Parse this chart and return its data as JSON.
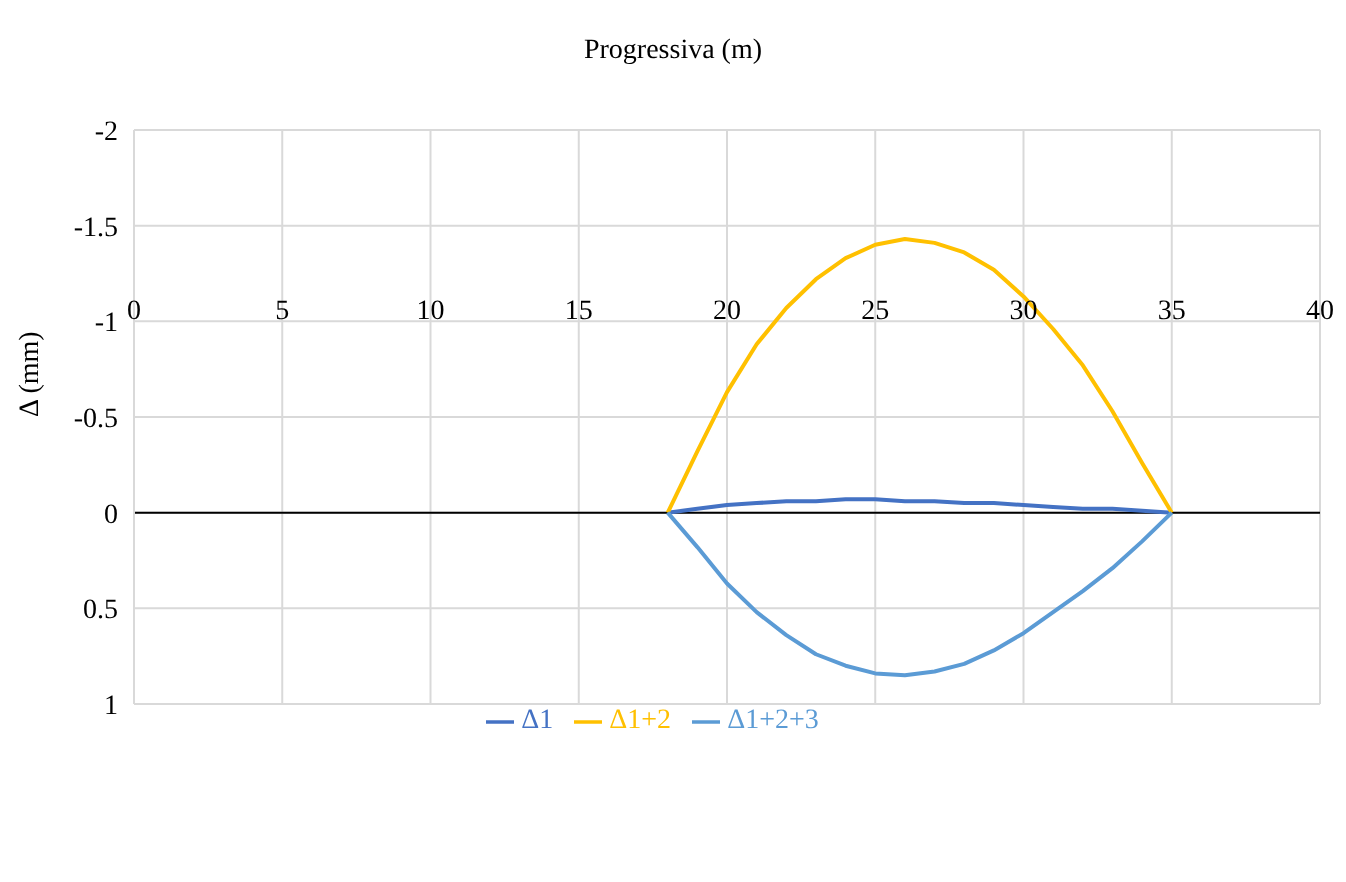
{
  "chart_data": {
    "type": "line",
    "xlabel": "Progressiva (m)",
    "ylabel": "Δ (mm)",
    "x": [
      18,
      19,
      20,
      21,
      22,
      23,
      24,
      25,
      26,
      27,
      28,
      29,
      30,
      31,
      32,
      33,
      34,
      35
    ],
    "series": [
      {
        "name": "Δ1",
        "color": "#4472c4",
        "values": [
          0,
          -0.02,
          -0.04,
          -0.05,
          -0.06,
          -0.06,
          -0.07,
          -0.07,
          -0.06,
          -0.06,
          -0.05,
          -0.05,
          -0.04,
          -0.03,
          -0.02,
          -0.02,
          -0.01,
          0
        ]
      },
      {
        "name": "Δ1+2",
        "color": "#ffc000",
        "values": [
          0,
          -0.32,
          -0.63,
          -0.88,
          -1.07,
          -1.22,
          -1.33,
          -1.4,
          -1.43,
          -1.41,
          -1.36,
          -1.27,
          -1.13,
          -0.96,
          -0.77,
          -0.53,
          -0.26,
          0
        ]
      },
      {
        "name": "Δ1+2+3",
        "color": "#5b9bd5",
        "values": [
          0,
          0.18,
          0.37,
          0.52,
          0.64,
          0.74,
          0.8,
          0.84,
          0.85,
          0.83,
          0.79,
          0.72,
          0.63,
          0.52,
          0.41,
          0.29,
          0.15,
          0
        ]
      }
    ],
    "xlim": [
      0,
      40
    ],
    "xticks": [
      0,
      5,
      10,
      15,
      20,
      25,
      30,
      35,
      40
    ],
    "ylim": [
      1,
      -2
    ],
    "yticks": [
      -2,
      -1.5,
      -1,
      -0.5,
      0,
      0.5,
      1
    ],
    "grid": true,
    "legend": "bottom",
    "marker": "none",
    "line_style": "solid"
  }
}
